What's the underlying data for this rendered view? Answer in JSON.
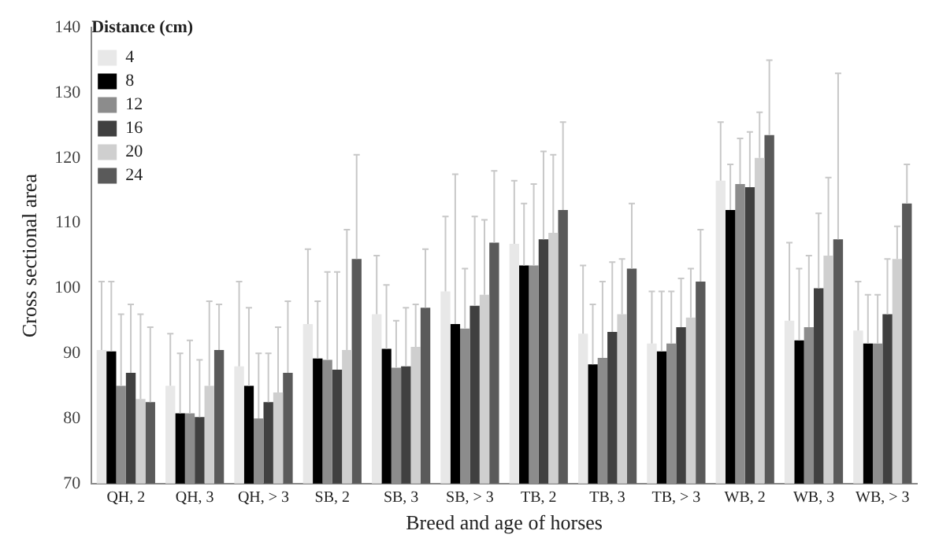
{
  "chart_data": {
    "type": "bar",
    "xlabel": "Breed and age of horses",
    "ylabel": "Cross sectional area",
    "legend_title": "Distance (cm)",
    "legend": "top left",
    "grid": false,
    "categories": [
      "QH, 2",
      "QH, 3",
      "QH, > 3",
      "SB, 2",
      "SB, 3",
      "SB, > 3",
      "TB, 2",
      "TB, 3",
      "TB, > 3",
      "WB, 2",
      "WB, 3",
      "WB, > 3"
    ],
    "ylim": [
      70,
      140
    ],
    "yticks": [
      70,
      80,
      90,
      100,
      110,
      120,
      130,
      140
    ],
    "series": [
      {
        "name": "4",
        "color": "#e8e8e8",
        "values": [
          90.5,
          85,
          88,
          94.5,
          96,
          99.5,
          106.8,
          93,
          91.5,
          116.5,
          95,
          93.5
        ],
        "errors": [
          [
            90.5,
            101
          ],
          [
            85,
            93
          ],
          [
            88,
            101
          ],
          [
            94.5,
            106
          ],
          [
            96,
            105
          ],
          [
            99.5,
            111
          ],
          [
            106.8,
            116.5
          ],
          [
            93,
            103.5
          ],
          [
            91.5,
            99.5
          ],
          [
            116.5,
            125.5
          ],
          [
            95,
            107
          ],
          [
            93.5,
            101
          ]
        ]
      },
      {
        "name": "8",
        "color": "#000000",
        "values": [
          90.3,
          80.8,
          85,
          89.2,
          90.7,
          94.5,
          103.5,
          88.3,
          90.3,
          112,
          92,
          91.5
        ],
        "errors": [
          [
            90.3,
            101
          ],
          [
            80.8,
            90
          ],
          [
            85,
            97
          ],
          [
            89.2,
            98
          ],
          [
            90.7,
            100.5
          ],
          [
            94.5,
            117.5
          ],
          [
            103.5,
            113
          ],
          [
            88.3,
            97.5
          ],
          [
            90.3,
            99.5
          ],
          [
            112,
            119
          ],
          [
            92,
            103
          ],
          [
            91.5,
            99
          ]
        ]
      },
      {
        "name": "12",
        "color": "#8c8c8c",
        "values": [
          85,
          80.8,
          80,
          89,
          87.8,
          93.8,
          103.5,
          89.3,
          91.5,
          116,
          94,
          91.5
        ],
        "errors": [
          [
            85,
            96
          ],
          [
            80.8,
            92
          ],
          [
            80,
            90
          ],
          [
            89,
            102.5
          ],
          [
            87.8,
            95
          ],
          [
            93.8,
            103
          ],
          [
            103.5,
            116
          ],
          [
            89.3,
            101
          ],
          [
            91.5,
            99.5
          ],
          [
            116,
            123
          ],
          [
            94,
            105
          ],
          [
            91.5,
            99
          ]
        ]
      },
      {
        "name": "16",
        "color": "#404040",
        "values": [
          87,
          80.2,
          82.5,
          87.5,
          88,
          97.3,
          107.5,
          93.3,
          94,
          115.5,
          100,
          96
        ],
        "errors": [
          [
            87,
            97.5
          ],
          [
            80.2,
            89
          ],
          [
            82.5,
            90
          ],
          [
            87.5,
            102.5
          ],
          [
            88,
            97
          ],
          [
            97.3,
            111
          ],
          [
            107.5,
            121
          ],
          [
            93.3,
            104
          ],
          [
            94,
            101.5
          ],
          [
            115.5,
            124
          ],
          [
            100,
            111.5
          ],
          [
            96,
            104.5
          ]
        ]
      },
      {
        "name": "20",
        "color": "#cfcfcf",
        "values": [
          83,
          85,
          84,
          90.5,
          91,
          99,
          108.5,
          96,
          95.5,
          120,
          105,
          104.5
        ],
        "errors": [
          [
            83,
            96
          ],
          [
            85,
            98
          ],
          [
            84,
            94
          ],
          [
            90.5,
            109
          ],
          [
            91,
            97.5
          ],
          [
            99,
            110.5
          ],
          [
            108.5,
            120.5
          ],
          [
            96,
            104.5
          ],
          [
            95.5,
            103
          ],
          [
            120,
            127
          ],
          [
            105,
            117
          ],
          [
            104.5,
            109.5
          ]
        ]
      },
      {
        "name": "24",
        "color": "#5a5a5a",
        "values": [
          82.5,
          90.5,
          87,
          104.5,
          97,
          107,
          112,
          103,
          101,
          123.5,
          107.5,
          113
        ],
        "errors": [
          [
            82.5,
            94
          ],
          [
            90.5,
            97.5
          ],
          [
            87,
            98
          ],
          [
            104.5,
            120.5
          ],
          [
            97,
            106
          ],
          [
            107,
            118
          ],
          [
            112,
            125.5
          ],
          [
            103,
            113
          ],
          [
            101,
            109
          ],
          [
            123.5,
            135
          ],
          [
            107.5,
            133
          ],
          [
            113,
            119
          ]
        ]
      }
    ]
  }
}
